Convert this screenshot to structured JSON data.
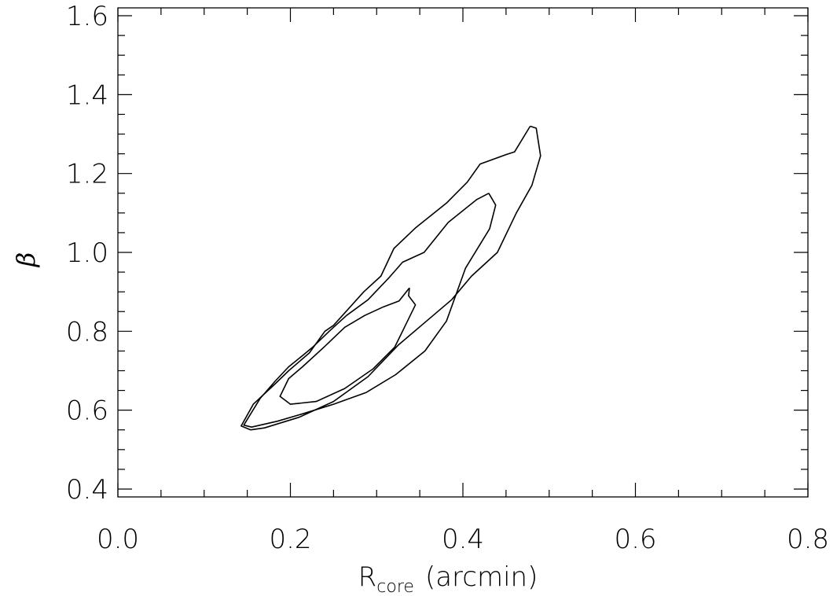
{
  "chart_data": {
    "type": "line",
    "subtype": "contour",
    "xlabel": "R",
    "xlabel_sub": "core",
    "xlabel_unit": "(arcmin)",
    "ylabel": "β",
    "xlim": [
      0.0,
      0.8
    ],
    "ylim": [
      0.38,
      1.62
    ],
    "x_ticks": [
      0.0,
      0.2,
      0.4,
      0.6,
      0.8
    ],
    "x_tick_labels": [
      "0.0",
      "0.2",
      "0.4",
      "0.6",
      "0.8"
    ],
    "y_ticks": [
      0.4,
      0.6,
      0.8,
      1.0,
      1.2,
      1.4,
      1.6
    ],
    "y_tick_labels": [
      "0.4",
      "0.6",
      "0.8",
      "1.0",
      "1.2",
      "1.4",
      "1.6"
    ],
    "x_minor_step": 0.05,
    "y_minor_step": 0.05,
    "grid": false,
    "line_color": "#000000",
    "series": [
      {
        "x": [
          0.338,
          0.326,
          0.308,
          0.286,
          0.263,
          0.239,
          0.214,
          0.198,
          0.188,
          0.2,
          0.23,
          0.263,
          0.296,
          0.321,
          0.345,
          0.337,
          0.338
        ],
        "y": [
          0.91,
          0.877,
          0.862,
          0.84,
          0.81,
          0.76,
          0.71,
          0.68,
          0.635,
          0.615,
          0.622,
          0.655,
          0.705,
          0.76,
          0.867,
          0.89,
          0.91
        ]
      },
      {
        "x": [
          0.43,
          0.416,
          0.383,
          0.355,
          0.33,
          0.314,
          0.29,
          0.265,
          0.245,
          0.226,
          0.215,
          0.198,
          0.183,
          0.165,
          0.151,
          0.146,
          0.155,
          0.185,
          0.216,
          0.25,
          0.288,
          0.322,
          0.356,
          0.381,
          0.403,
          0.431,
          0.438,
          0.43
        ],
        "y": [
          1.15,
          1.134,
          1.076,
          1.0,
          0.975,
          0.935,
          0.88,
          0.84,
          0.8,
          0.76,
          0.74,
          0.71,
          0.675,
          0.63,
          0.58,
          0.562,
          0.557,
          0.572,
          0.592,
          0.615,
          0.645,
          0.69,
          0.75,
          0.826,
          0.96,
          1.06,
          1.12,
          1.15
        ]
      },
      {
        "x": [
          0.478,
          0.46,
          0.45,
          0.42,
          0.405,
          0.381,
          0.345,
          0.32,
          0.305,
          0.285,
          0.25,
          0.24,
          0.222,
          0.198,
          0.183,
          0.157,
          0.143,
          0.154,
          0.17,
          0.21,
          0.25,
          0.29,
          0.325,
          0.36,
          0.387,
          0.41,
          0.44,
          0.462,
          0.48,
          0.49,
          0.485,
          0.478
        ],
        "y": [
          1.32,
          1.255,
          1.248,
          1.224,
          1.178,
          1.125,
          1.062,
          1.01,
          0.94,
          0.9,
          0.815,
          0.8,
          0.745,
          0.7,
          0.668,
          0.615,
          0.56,
          0.55,
          0.555,
          0.582,
          0.622,
          0.685,
          0.765,
          0.83,
          0.88,
          0.94,
          1.0,
          1.1,
          1.17,
          1.245,
          1.315,
          1.32
        ]
      }
    ]
  }
}
